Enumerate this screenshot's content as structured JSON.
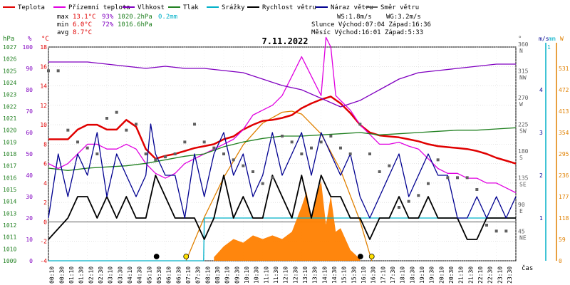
{
  "legend": [
    {
      "label": "Teplota",
      "color": "#e00000"
    },
    {
      "label": "Přízemní teplota",
      "color": "#e000e0"
    },
    {
      "label": "Vlhkost",
      "color": "#8000c0"
    },
    {
      "label": "Tlak",
      "color": "#208020"
    },
    {
      "label": "Srážky",
      "color": "#00b0c8"
    },
    {
      "label": "Rychlost větru",
      "color": "#000000"
    },
    {
      "label": "Náraz větru",
      "color": "#000090"
    },
    {
      "label": "Směr větru",
      "color": "#606060"
    }
  ],
  "stats": {
    "max_label": "max",
    "min_label": "min",
    "avg_label": "avg",
    "max_temp": "13.1°C",
    "max_hum": "93%",
    "max_press": "1020.2hPa",
    "max_rain": "0.2mm",
    "min_temp": "6.0°C",
    "min_hum": "72%",
    "min_press": "1016.6hPa",
    "avg_temp": "8.7°C"
  },
  "info": {
    "ws": "WS:1.8m/s",
    "wg": "WG:3.2m/s",
    "sun": "Slunce Východ:07:04  Západ:16:36",
    "moon": "Měsíc  Východ:16:01  Západ:5:33"
  },
  "chart_data": {
    "type": "line",
    "title": "7.11.2022",
    "xlabel": "čas",
    "x_ticks": [
      "00:10",
      "00:30",
      "01:10",
      "01:30",
      "02:10",
      "02:30",
      "03:10",
      "03:30",
      "04:10",
      "04:30",
      "05:10",
      "05:30",
      "06:10",
      "06:30",
      "07:10",
      "07:30",
      "08:10",
      "08:30",
      "09:10",
      "09:30",
      "10:10",
      "10:30",
      "11:10",
      "11:30",
      "12:10",
      "12:30",
      "13:10",
      "13:30",
      "14:10",
      "14:30",
      "15:10",
      "15:30",
      "16:10",
      "16:30",
      "17:10",
      "17:30",
      "18:10",
      "18:30",
      "19:10",
      "19:30",
      "20:10",
      "20:30",
      "21:10",
      "21:30",
      "22:10",
      "22:30",
      "23:10",
      "23:30"
    ],
    "axes": {
      "hpa": {
        "unit": "hPa",
        "color": "#208020",
        "range": [
          1009,
          1027
        ],
        "ticks": [
          1027,
          1026,
          1025,
          1024,
          1023,
          1022,
          1021,
          1020,
          1019,
          1018,
          1017,
          1016,
          1015,
          1014,
          1013,
          1012,
          1011,
          1010,
          1009
        ]
      },
      "pct": {
        "unit": "%",
        "color": "#8000c0",
        "range": [
          0,
          100
        ],
        "ticks": [
          100,
          90,
          80,
          70,
          60,
          50,
          40,
          30,
          20,
          10,
          0
        ]
      },
      "temp": {
        "unit": "°C",
        "color": "#e00000",
        "range": [
          -4,
          18
        ],
        "ticks": [
          18,
          16,
          14,
          12,
          10,
          8,
          6,
          4,
          2,
          0,
          -2,
          -4
        ]
      },
      "ms": {
        "unit": "m/s",
        "color": "#000090",
        "range": [
          0,
          5
        ],
        "ticks": [
          4,
          3,
          2,
          1
        ]
      },
      "mm": {
        "unit": "mm",
        "color": "#00b0c8",
        "range": [
          0,
          1
        ],
        "ticks": [
          1
        ]
      },
      "wm2": {
        "unit": "W",
        "color": "#e08000",
        "range": [
          0,
          590
        ],
        "ticks": [
          531,
          472,
          413,
          354,
          295,
          236,
          177,
          118,
          59,
          0
        ]
      },
      "dir": {
        "unit": "°",
        "color": "#606060",
        "range": [
          0,
          360
        ],
        "ticks": [
          {
            "deg": "360",
            "lbl": "N"
          },
          {
            "deg": "315",
            "lbl": "NW"
          },
          {
            "deg": "270",
            "lbl": "W"
          },
          {
            "deg": "225",
            "lbl": "SW"
          },
          {
            "deg": "180",
            "lbl": "S"
          },
          {
            "deg": "135",
            "lbl": "SE"
          },
          {
            "deg": "90",
            "lbl": "E"
          },
          {
            "deg": "45",
            "lbl": "NE"
          }
        ]
      }
    },
    "series": [
      {
        "name": "Teplota",
        "axis": "temp",
        "color": "#e00000",
        "x": [
          0,
          0.5,
          1,
          1.5,
          2,
          2.5,
          3,
          3.5,
          4,
          4.5,
          5,
          5.5,
          6,
          6.5,
          7,
          7.5,
          8,
          8.5,
          9,
          9.5,
          10,
          10.5,
          11,
          11.5,
          12,
          12.5,
          13,
          13.5,
          14,
          14.5,
          15,
          15.5,
          16,
          16.5,
          17,
          17.5,
          18,
          18.5,
          19,
          19.5,
          20,
          20.5,
          21,
          21.5,
          22,
          22.5,
          23,
          23.5,
          24
        ],
        "y": [
          8.5,
          8.5,
          8.5,
          9.5,
          10,
          10,
          9.5,
          9.5,
          10.5,
          9.8,
          7.5,
          6.5,
          6.8,
          7,
          7.3,
          7.6,
          7.8,
          8,
          8.5,
          8.8,
          9.5,
          10,
          10.4,
          10.5,
          10.7,
          11,
          11.7,
          12.2,
          12.6,
          12.9,
          12.2,
          11.2,
          10,
          9.2,
          8.9,
          8.8,
          8.7,
          8.5,
          8.3,
          8,
          7.8,
          7.7,
          7.6,
          7.5,
          7.3,
          7,
          6.6,
          6.3,
          6
        ]
      },
      {
        "name": "Přízemní teplota",
        "axis": "temp",
        "color": "#e000e0",
        "x": [
          0,
          0.5,
          1,
          1.5,
          2,
          2.5,
          3,
          3.5,
          4,
          4.5,
          5,
          5.5,
          6,
          6.5,
          7,
          7.5,
          8,
          8.5,
          9,
          9.5,
          10,
          10.5,
          11,
          11.5,
          12,
          12.5,
          13,
          13.5,
          14,
          14.25,
          14.5,
          14.75,
          15,
          15.5,
          16,
          16.5,
          17,
          17.5,
          18,
          18.5,
          19,
          19.5,
          20,
          20.5,
          21,
          21.5,
          22,
          22.5,
          23,
          23.5,
          24
        ],
        "y": [
          6,
          5.5,
          6,
          7,
          8,
          8,
          7.5,
          7.5,
          8,
          7.5,
          6,
          5,
          4.5,
          5,
          6,
          6.5,
          7,
          7.5,
          8,
          8.5,
          9.5,
          11,
          11.5,
          12,
          13,
          15,
          17,
          15,
          13,
          19,
          18,
          13,
          12.5,
          11.5,
          10,
          9,
          8,
          8,
          8.2,
          7.8,
          7.5,
          6.5,
          5.5,
          5,
          5,
          4.5,
          4.5,
          4,
          4,
          3.5,
          3
        ]
      },
      {
        "name": "Vlhkost",
        "axis": "pct",
        "color": "#8000c0",
        "x": [
          0,
          1,
          2,
          3,
          4,
          5,
          6,
          7,
          8,
          9,
          10,
          11,
          12,
          13,
          14,
          15,
          16,
          17,
          18,
          19,
          20,
          21,
          22,
          23,
          24
        ],
        "y": [
          93,
          93,
          93,
          92,
          91,
          90,
          91,
          90,
          90,
          89,
          88,
          85,
          82,
          80,
          76,
          72,
          75,
          80,
          85,
          88,
          89,
          90,
          91,
          92,
          92
        ]
      },
      {
        "name": "Tlak",
        "axis": "hpa",
        "color": "#208020",
        "x": [
          0,
          1,
          2,
          3,
          4,
          5,
          6,
          7,
          8,
          9,
          10,
          11,
          12,
          13,
          14,
          15,
          16,
          17,
          18,
          19,
          20,
          21,
          22,
          23,
          24
        ],
        "y": [
          1016.8,
          1016.6,
          1016.8,
          1016.9,
          1017,
          1017.2,
          1017.5,
          1017.8,
          1018,
          1018.6,
          1019,
          1019.3,
          1019.5,
          1019.5,
          1019.6,
          1019.7,
          1019.8,
          1019.6,
          1019.7,
          1019.8,
          1019.9,
          1020,
          1020,
          1020.1,
          1020.2
        ]
      },
      {
        "name": "Srážky",
        "axis": "mm",
        "color": "#00b0c8",
        "x": [
          0,
          7.97,
          8,
          24
        ],
        "y": [
          0,
          0,
          0.2,
          0.2
        ]
      },
      {
        "name": "Rychlost větru",
        "axis": "ms",
        "color": "#000000",
        "x": [
          0,
          1,
          1.5,
          2,
          2.5,
          3,
          3.5,
          4,
          4.5,
          5,
          5.5,
          6,
          6.5,
          7,
          7.5,
          8,
          8.5,
          9,
          9.5,
          10,
          10.5,
          11,
          11.5,
          12,
          12.5,
          13,
          13.5,
          14,
          14.5,
          15,
          15.5,
          16,
          16.5,
          17,
          17.5,
          18,
          18.5,
          19,
          19.5,
          20,
          20.5,
          21,
          21.5,
          22,
          22.5,
          23,
          23.5,
          24
        ],
        "y": [
          0.5,
          1,
          1.5,
          1.5,
          1,
          1.5,
          1,
          1.5,
          1,
          1,
          2,
          1.5,
          1,
          1,
          1,
          0.5,
          1,
          2,
          1,
          1.5,
          1,
          1,
          2,
          1.5,
          1,
          2,
          1,
          2,
          1.5,
          1.5,
          1,
          1,
          0.5,
          1,
          1,
          1.5,
          1,
          1,
          1.5,
          1,
          1,
          1,
          0.5,
          0.5,
          1,
          1,
          1,
          1
        ]
      },
      {
        "name": "Náraz větru",
        "axis": "ms",
        "color": "#000090",
        "x": [
          0,
          0.5,
          1,
          1.5,
          2,
          2.5,
          3,
          3.5,
          4,
          4.5,
          5,
          5.25,
          5.5,
          6,
          6.5,
          7,
          7.5,
          8,
          8.5,
          9,
          9.5,
          10,
          10.5,
          11,
          11.5,
          12,
          12.5,
          13,
          13.5,
          14,
          14.5,
          15,
          15.5,
          16,
          16.5,
          17,
          17.5,
          18,
          18.5,
          19,
          19.5,
          20,
          20.5,
          21,
          21.5,
          22,
          22.5,
          23,
          23.5,
          24
        ],
        "y": [
          1,
          2.5,
          1.5,
          2.5,
          2,
          3,
          1.5,
          2.5,
          2,
          1.5,
          2,
          3.2,
          2.5,
          2,
          2,
          1,
          2.5,
          1.5,
          2.5,
          3,
          2,
          2.5,
          1.5,
          2,
          3,
          2,
          2.5,
          3,
          2,
          3,
          2.5,
          2,
          2.5,
          1.5,
          1,
          1.5,
          2,
          2.5,
          1.5,
          2,
          2.5,
          2,
          2,
          1,
          1,
          1.5,
          1,
          1.5,
          1,
          1.5
        ]
      },
      {
        "name": "Směr větru",
        "axis": "dir",
        "color": "#606060",
        "x": [
          0,
          0.5,
          1,
          1.5,
          2,
          2.5,
          3,
          3.5,
          4,
          4.5,
          5,
          5.5,
          6,
          6.5,
          7,
          7.5,
          8,
          8.5,
          9,
          9.5,
          10,
          10.5,
          11,
          11.5,
          12,
          12.5,
          13,
          13.5,
          14,
          14.5,
          15,
          15.5,
          16,
          16.5,
          17,
          17.5,
          18,
          18.5,
          19,
          19.5,
          20,
          20.5,
          21,
          21.5,
          22,
          22.5,
          23,
          23.5
        ],
        "y": [
          320,
          320,
          220,
          200,
          190,
          180,
          240,
          250,
          220,
          230,
          180,
          170,
          175,
          180,
          200,
          230,
          200,
          190,
          180,
          170,
          160,
          150,
          130,
          140,
          210,
          200,
          180,
          190,
          200,
          210,
          190,
          180,
          230,
          180,
          150,
          160,
          90,
          100,
          110,
          130,
          170,
          140,
          140,
          140,
          120,
          60,
          50,
          50
        ]
      }
    ],
    "radiation": {
      "name": "Sluneční záření",
      "axis": "wm2",
      "color": "#e08000",
      "x": [
        7.07,
        8,
        9,
        10,
        11,
        12,
        12.5,
        13,
        14,
        15,
        16,
        16.6
      ],
      "y": [
        0,
        120,
        230,
        320,
        380,
        410,
        413,
        405,
        350,
        250,
        110,
        0
      ]
    },
    "radiation_measured": {
      "axis": "wm2",
      "color": "#ff8000",
      "x": [
        8.5,
        9,
        9.5,
        10,
        10.5,
        11,
        11.5,
        12,
        12.5,
        13,
        13.25,
        13.5,
        13.75,
        14,
        14.25,
        14.5,
        14.75,
        15,
        15.5,
        16
      ],
      "y": [
        10,
        40,
        60,
        50,
        70,
        60,
        70,
        60,
        80,
        150,
        190,
        120,
        180,
        220,
        100,
        180,
        80,
        90,
        30,
        5
      ]
    },
    "grid": true,
    "legend_position": "top"
  }
}
